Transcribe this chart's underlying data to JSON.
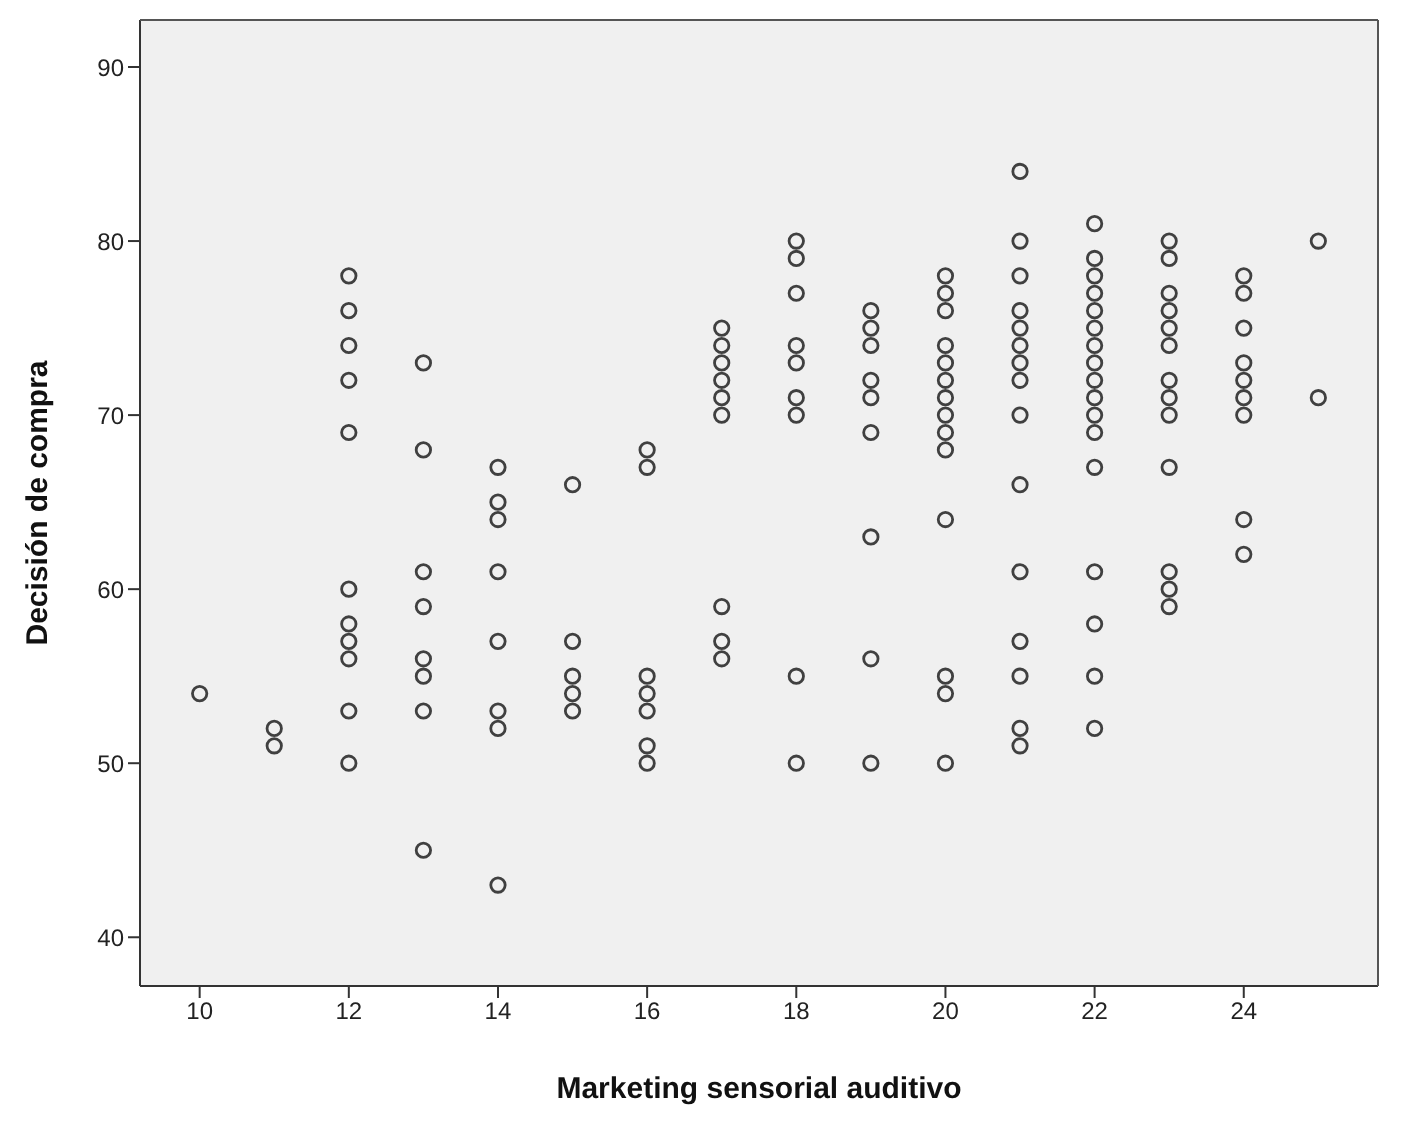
{
  "chart_data": {
    "type": "scatter",
    "xlabel": "Marketing sensorial auditivo",
    "ylabel": "Decisión de compra",
    "xlim": [
      9.2,
      25.8
    ],
    "xticks": [
      10,
      12,
      14,
      16,
      18,
      20,
      22,
      24
    ],
    "ylim": [
      37.2,
      92.7
    ],
    "yticks": [
      40,
      50,
      60,
      70,
      80,
      90
    ],
    "marker": "circle",
    "grid": false,
    "legend": false,
    "series": [
      {
        "color": "#404040",
        "x": [
          10,
          11,
          11,
          12,
          12,
          12,
          12,
          12,
          12,
          12,
          12,
          12,
          12,
          12,
          13,
          13,
          13,
          13,
          13,
          13,
          13,
          13,
          14,
          14,
          14,
          14,
          14,
          14,
          14,
          14,
          15,
          15,
          15,
          15,
          15,
          16,
          16,
          16,
          16,
          16,
          16,
          16,
          17,
          17,
          17,
          17,
          17,
          17,
          17,
          17,
          17,
          18,
          18,
          18,
          18,
          18,
          18,
          18,
          18,
          18,
          19,
          19,
          19,
          19,
          19,
          19,
          19,
          19,
          19,
          20,
          20,
          20,
          20,
          20,
          20,
          20,
          20,
          20,
          20,
          20,
          20,
          20,
          20,
          21,
          21,
          21,
          21,
          21,
          21,
          21,
          21,
          21,
          21,
          21,
          21,
          21,
          21,
          21,
          22,
          22,
          22,
          22,
          22,
          22,
          22,
          22,
          22,
          22,
          22,
          22,
          22,
          22,
          22,
          22,
          22,
          23,
          23,
          23,
          23,
          23,
          23,
          23,
          23,
          23,
          23,
          23,
          23,
          23,
          24,
          24,
          24,
          24,
          24,
          24,
          24,
          24,
          24,
          25,
          25
        ],
        "values": [
          54,
          52,
          51,
          78,
          76,
          74,
          72,
          69,
          60,
          58,
          57,
          56,
          53,
          50,
          73,
          68,
          61,
          59,
          56,
          55,
          53,
          45,
          67,
          65,
          64,
          61,
          57,
          53,
          52,
          43,
          66,
          57,
          55,
          54,
          53,
          68,
          67,
          55,
          54,
          53,
          51,
          50,
          75,
          74,
          73,
          72,
          71,
          70,
          59,
          57,
          56,
          80,
          79,
          77,
          74,
          73,
          71,
          70,
          55,
          50,
          76,
          75,
          74,
          72,
          71,
          69,
          63,
          56,
          50,
          78,
          77,
          76,
          74,
          73,
          72,
          71,
          70,
          69,
          68,
          64,
          55,
          54,
          50,
          84,
          80,
          78,
          76,
          75,
          74,
          73,
          72,
          70,
          66,
          61,
          57,
          55,
          52,
          51,
          81,
          79,
          78,
          77,
          76,
          75,
          74,
          73,
          72,
          71,
          70,
          69,
          67,
          61,
          58,
          55,
          52,
          80,
          79,
          77,
          76,
          75,
          74,
          72,
          71,
          70,
          67,
          61,
          60,
          59,
          78,
          77,
          75,
          73,
          72,
          71,
          70,
          64,
          62,
          80,
          71
        ]
      }
    ]
  }
}
